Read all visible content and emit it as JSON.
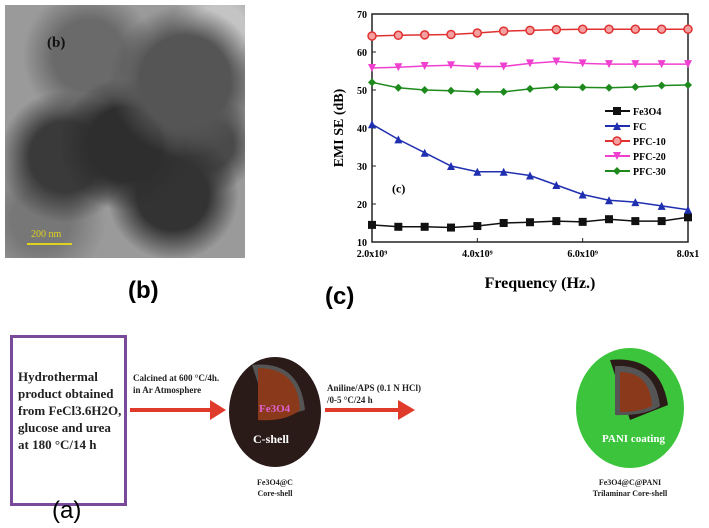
{
  "panel_labels": {
    "b": "(b)",
    "c": "(c)",
    "a": "(a)"
  },
  "tem": {
    "inset_label": "(b)",
    "scale_bar": "200 nm"
  },
  "chart_data": {
    "type": "line",
    "xlabel": "Frequency (Hz.)",
    "ylabel": "EMI SE (dB)",
    "annotation": "(c)",
    "xlim": [
      2000000000.0,
      8000000000.0
    ],
    "ylim": [
      10,
      70
    ],
    "x_ticks": [
      "2.0x10⁹",
      "4.0x10⁹",
      "6.0x10⁹",
      "8.0x1"
    ],
    "y_ticks": [
      "10",
      "20",
      "30",
      "40",
      "50",
      "60",
      "70"
    ],
    "legend_position": "right",
    "x": [
      2000000000.0,
      2500000000.0,
      3000000000.0,
      3500000000.0,
      4000000000.0,
      4500000000.0,
      5000000000.0,
      5500000000.0,
      6000000000.0,
      6500000000.0,
      7000000000.0,
      7500000000.0,
      8000000000.0
    ],
    "series": [
      {
        "name": "Fe3O4",
        "color": "#111111",
        "marker": "square",
        "values": [
          14.5,
          14,
          14,
          13.8,
          14.2,
          15,
          15.2,
          15.5,
          15.3,
          16,
          15.5,
          15.5,
          16.5
        ]
      },
      {
        "name": "FC",
        "color": "#1f2fb0",
        "marker": "triangle-up",
        "values": [
          41,
          37,
          33.5,
          30,
          28.5,
          28.5,
          27.5,
          25,
          22.5,
          21,
          20.5,
          19.5,
          18.5
        ]
      },
      {
        "name": "PFC-10",
        "color": "#e03030",
        "marker": "circle",
        "values": [
          64.2,
          64.4,
          64.5,
          64.6,
          65,
          65.5,
          65.7,
          65.9,
          66,
          66,
          66,
          66,
          66
        ]
      },
      {
        "name": "PFC-20",
        "color": "#f040d0",
        "marker": "triangle-down",
        "values": [
          55.8,
          56,
          56.3,
          56.5,
          56.2,
          56.2,
          57,
          57.5,
          57,
          56.8,
          56.8,
          56.8,
          56.8
        ]
      },
      {
        "name": "PFC-30",
        "color": "#1e8a1e",
        "marker": "diamond",
        "values": [
          52,
          50.6,
          50,
          49.8,
          49.5,
          49.5,
          50.3,
          50.8,
          50.7,
          50.6,
          50.8,
          51.2,
          51.3
        ]
      }
    ]
  },
  "scheme": {
    "box_text": [
      "Hydrothermal",
      "product obtained",
      "from FeCl3.6H2O,",
      "glucose and urea",
      "at 180 °C/14 h"
    ],
    "step1": [
      "Calcined at 600 °C/4h.",
      "in Ar Atmosphere"
    ],
    "core_label": "Fe3O4",
    "shell_label": "C-shell",
    "product1": [
      "Fe3O4@C",
      "Core-shell"
    ],
    "step2": [
      "Aniline/APS (0.1 N HCl)",
      "/0-5 °C/24 h"
    ],
    "coating_label": "PANI coating",
    "product2": [
      "Fe3O4@C@PANI",
      "Trilaminar Core-shell"
    ],
    "colors": {
      "box_border": "#7a4a9a",
      "arrow": "#e03a2a",
      "core": "#8a3a1a",
      "carbon": "#2a1a18",
      "pani": "#3cc43c"
    }
  }
}
